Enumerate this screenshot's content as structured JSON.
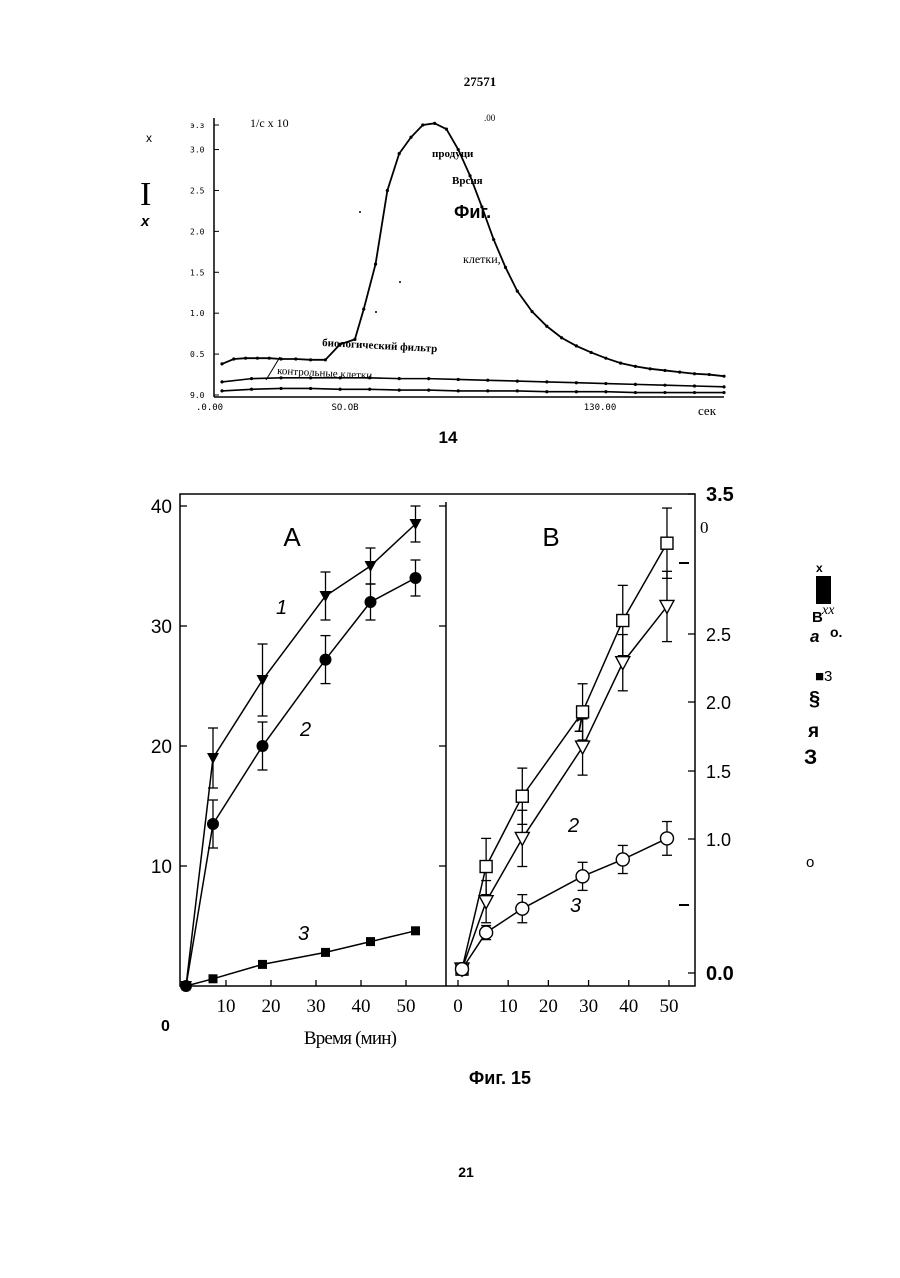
{
  "page": {
    "header_number": "27571",
    "page_number": "21"
  },
  "chart_data": [
    {
      "type": "line",
      "ylabel": "1/c x 10",
      "ylabel_top": "э.з",
      "corner_label": ".00",
      "y_ticks": [
        "э.з",
        "3.0",
        "2.5",
        "2.0",
        "1.5",
        "1.0",
        "0.5",
        "9.0"
      ],
      "x_ticks": [
        ".0.00",
        "SO.OB",
        "130.00"
      ],
      "x_unit": "сек",
      "stray_labels": [
        "x",
        "I",
        "x"
      ],
      "annotations": [
        "продуци",
        "Врсия",
        "Фиг.",
        "клетки,",
        "биологический фильтр",
        "контрольные клетки"
      ],
      "caption": "14",
      "ylim": [
        0,
        3.3
      ],
      "xlim": [
        0,
        170
      ],
      "series": [
        {
          "x": [
            0,
            4,
            8,
            12,
            16,
            20,
            25,
            30,
            35,
            40,
            45,
            48,
            52,
            56,
            60,
            64,
            68,
            72,
            76,
            80,
            84,
            88,
            92,
            96,
            100,
            105,
            110,
            115,
            120,
            125,
            130,
            135,
            140,
            145,
            150,
            155,
            160,
            165,
            170
          ],
          "y": [
            0.38,
            0.44,
            0.45,
            0.45,
            0.45,
            0.44,
            0.44,
            0.43,
            0.43,
            0.62,
            0.68,
            1.05,
            1.6,
            2.5,
            2.95,
            3.15,
            3.3,
            3.32,
            3.25,
            3.0,
            2.68,
            2.3,
            1.9,
            1.56,
            1.27,
            1.02,
            0.84,
            0.7,
            0.6,
            0.52,
            0.45,
            0.39,
            0.35,
            0.32,
            0.3,
            0.28,
            0.26,
            0.25,
            0.23
          ]
        },
        {
          "x": [
            0,
            10,
            20,
            30,
            40,
            50,
            60,
            70,
            80,
            90,
            100,
            110,
            120,
            130,
            140,
            150,
            160,
            170
          ],
          "y": [
            0.16,
            0.2,
            0.21,
            0.21,
            0.21,
            0.21,
            0.2,
            0.2,
            0.19,
            0.18,
            0.17,
            0.16,
            0.15,
            0.14,
            0.13,
            0.12,
            0.11,
            0.1
          ]
        },
        {
          "x": [
            0,
            10,
            20,
            30,
            40,
            50,
            60,
            70,
            80,
            90,
            100,
            110,
            120,
            130,
            140,
            150,
            160,
            170
          ],
          "y": [
            0.05,
            0.07,
            0.08,
            0.08,
            0.07,
            0.07,
            0.06,
            0.06,
            0.05,
            0.05,
            0.05,
            0.04,
            0.04,
            0.04,
            0.03,
            0.03,
            0.03,
            0.03
          ]
        }
      ]
    },
    {
      "type": "line",
      "panel_label": "A",
      "y_ticks": [
        "40",
        "30",
        "20",
        "10"
      ],
      "y_origin": "0",
      "x_ticks": [
        "10",
        "20",
        "30",
        "40",
        "50"
      ],
      "ylim": [
        0,
        41
      ],
      "xlim": [
        -2,
        58
      ],
      "series": [
        {
          "name": "1",
          "marker": "triangle-down-filled",
          "x": [
            0,
            6,
            17,
            31,
            41,
            51
          ],
          "y": [
            0,
            19,
            25.5,
            32.5,
            35,
            38.5
          ],
          "err": [
            0,
            2.5,
            3,
            2,
            1.5,
            1.5
          ]
        },
        {
          "name": "2",
          "marker": "circle-filled",
          "x": [
            0,
            6,
            17,
            31,
            41,
            51
          ],
          "y": [
            0,
            13.5,
            20,
            27.2,
            32,
            34
          ],
          "err": [
            0,
            2,
            2,
            2,
            1.5,
            1.5
          ]
        },
        {
          "name": "3",
          "marker": "square-filled",
          "x": [
            0,
            6,
            17,
            31,
            41,
            51
          ],
          "y": [
            0,
            0.6,
            1.8,
            2.8,
            3.7,
            4.6
          ],
          "err": [
            0,
            0,
            0,
            0,
            0,
            0
          ]
        }
      ]
    },
    {
      "type": "line",
      "panel_label": "B",
      "y_ticks": [
        "3.5",
        "2.5",
        "2.0",
        "1.5",
        "1.0",
        "0.0"
      ],
      "y_tick_top_extra": "0",
      "x_ticks": [
        "0",
        "10",
        "20",
        "30",
        "40",
        "50"
      ],
      "xlabel": "Время (мин)",
      "ylim": [
        0,
        3.5
      ],
      "xlim": [
        -2,
        58
      ],
      "series": [
        {
          "name": "1",
          "marker": "square-open",
          "x": [
            0,
            6,
            15,
            30,
            40,
            51
          ],
          "y": [
            0.12,
            0.85,
            1.35,
            1.95,
            2.6,
            3.15
          ],
          "err": [
            0,
            0.2,
            0.2,
            0.2,
            0.25,
            0.25
          ]
        },
        {
          "name": "2",
          "marker": "triangle-down-open",
          "x": [
            0,
            6,
            15,
            30,
            40,
            51
          ],
          "y": [
            0.12,
            0.6,
            1.05,
            1.7,
            2.3,
            2.7
          ],
          "err": [
            0,
            0.15,
            0.2,
            0.2,
            0.2,
            0.25
          ]
        },
        {
          "name": "3",
          "marker": "circle-open",
          "x": [
            0,
            6,
            15,
            30,
            40,
            51
          ],
          "y": [
            0.12,
            0.38,
            0.55,
            0.78,
            0.9,
            1.05
          ],
          "err": [
            0,
            0.05,
            0.1,
            0.1,
            0.1,
            0.12
          ]
        }
      ]
    }
  ],
  "right_glyphs": [
    "x",
    "B",
    "xx",
    "a",
    "o.",
    "■3",
    "§",
    "я",
    "З",
    "o"
  ],
  "figure_caption": "Фиг. 15"
}
